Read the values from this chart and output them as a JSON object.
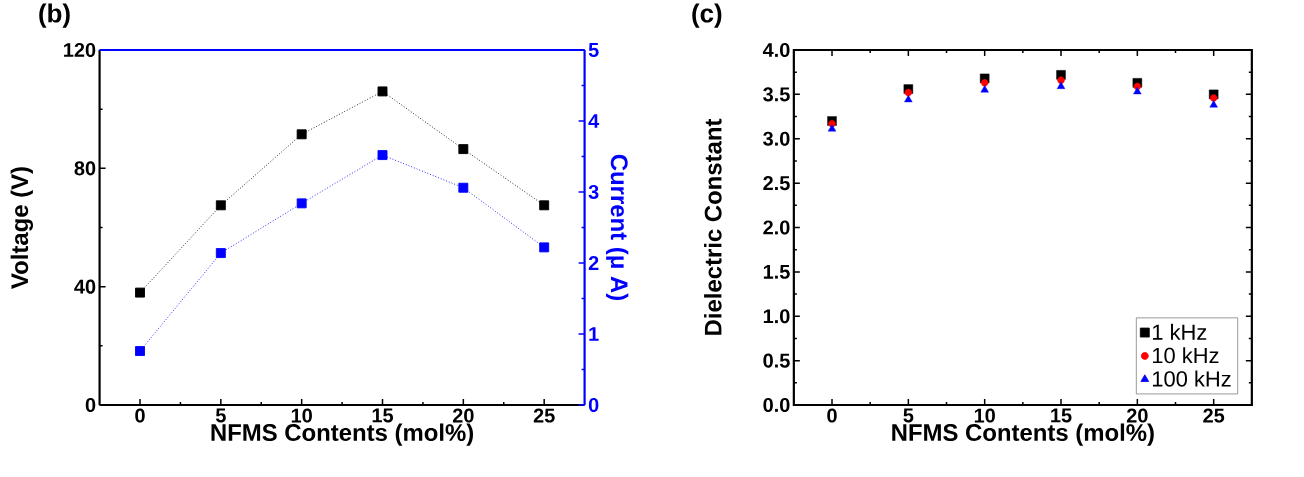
{
  "chart_data": [
    {
      "type": "line",
      "title": "(b)",
      "xlabel": "NFMS Contents (mol%)",
      "ylabel": "Voltage (V)",
      "y2label": "Current (μ A)",
      "x": [
        0,
        5,
        10,
        15,
        20,
        25
      ],
      "xlim": [
        -2.5,
        27.5
      ],
      "xticks": [
        0,
        5,
        10,
        15,
        20,
        25
      ],
      "ylim": [
        0,
        120
      ],
      "yticks": [
        0,
        40,
        80,
        120
      ],
      "y2lim": [
        0,
        5
      ],
      "y2ticks": [
        0,
        1,
        2,
        3,
        4,
        5
      ],
      "marker": "square",
      "line_style": "dotted",
      "legend": false,
      "grid": false,
      "series": [
        {
          "color": "#000000",
          "values": [
            38,
            67.5,
            91.5,
            106,
            86.5,
            67.5
          ]
        },
        {
          "color": "#0000ff",
          "axis": "y2",
          "values": [
            0.76,
            2.14,
            2.84,
            3.52,
            3.06,
            2.22
          ]
        }
      ]
    },
    {
      "type": "scatter",
      "title": "(c)",
      "xlabel": "NFMS Contents (mol%)",
      "ylabel": "Dielectric Constant",
      "x": [
        0,
        5,
        10,
        15,
        20,
        25
      ],
      "xlim": [
        -2.5,
        27.5
      ],
      "xticks": [
        0,
        5,
        10,
        15,
        20,
        25
      ],
      "ylim": [
        0,
        4
      ],
      "yticks": [
        {
          "value": 0,
          "label": "0.0"
        },
        0.5,
        {
          "value": 1,
          "label": "1.0"
        },
        1.5,
        {
          "value": 2,
          "label": "2.0"
        },
        2.5,
        {
          "value": 3,
          "label": "3.0"
        },
        3.5,
        {
          "value": 4,
          "label": "4.0"
        }
      ],
      "legend": "bottom right",
      "grid": false,
      "series": [
        {
          "name": "1 kHz",
          "color": "#000000",
          "marker": "square",
          "values": [
            3.2,
            3.56,
            3.68,
            3.72,
            3.63,
            3.5
          ]
        },
        {
          "name": "10 kHz",
          "color": "#ff0000",
          "marker": "circle",
          "values": [
            3.17,
            3.52,
            3.63,
            3.66,
            3.59,
            3.46
          ]
        },
        {
          "name": "100 kHz",
          "color": "#0000ff",
          "marker": "triangle",
          "values": [
            3.11,
            3.44,
            3.55,
            3.59,
            3.53,
            3.38
          ]
        }
      ]
    }
  ]
}
